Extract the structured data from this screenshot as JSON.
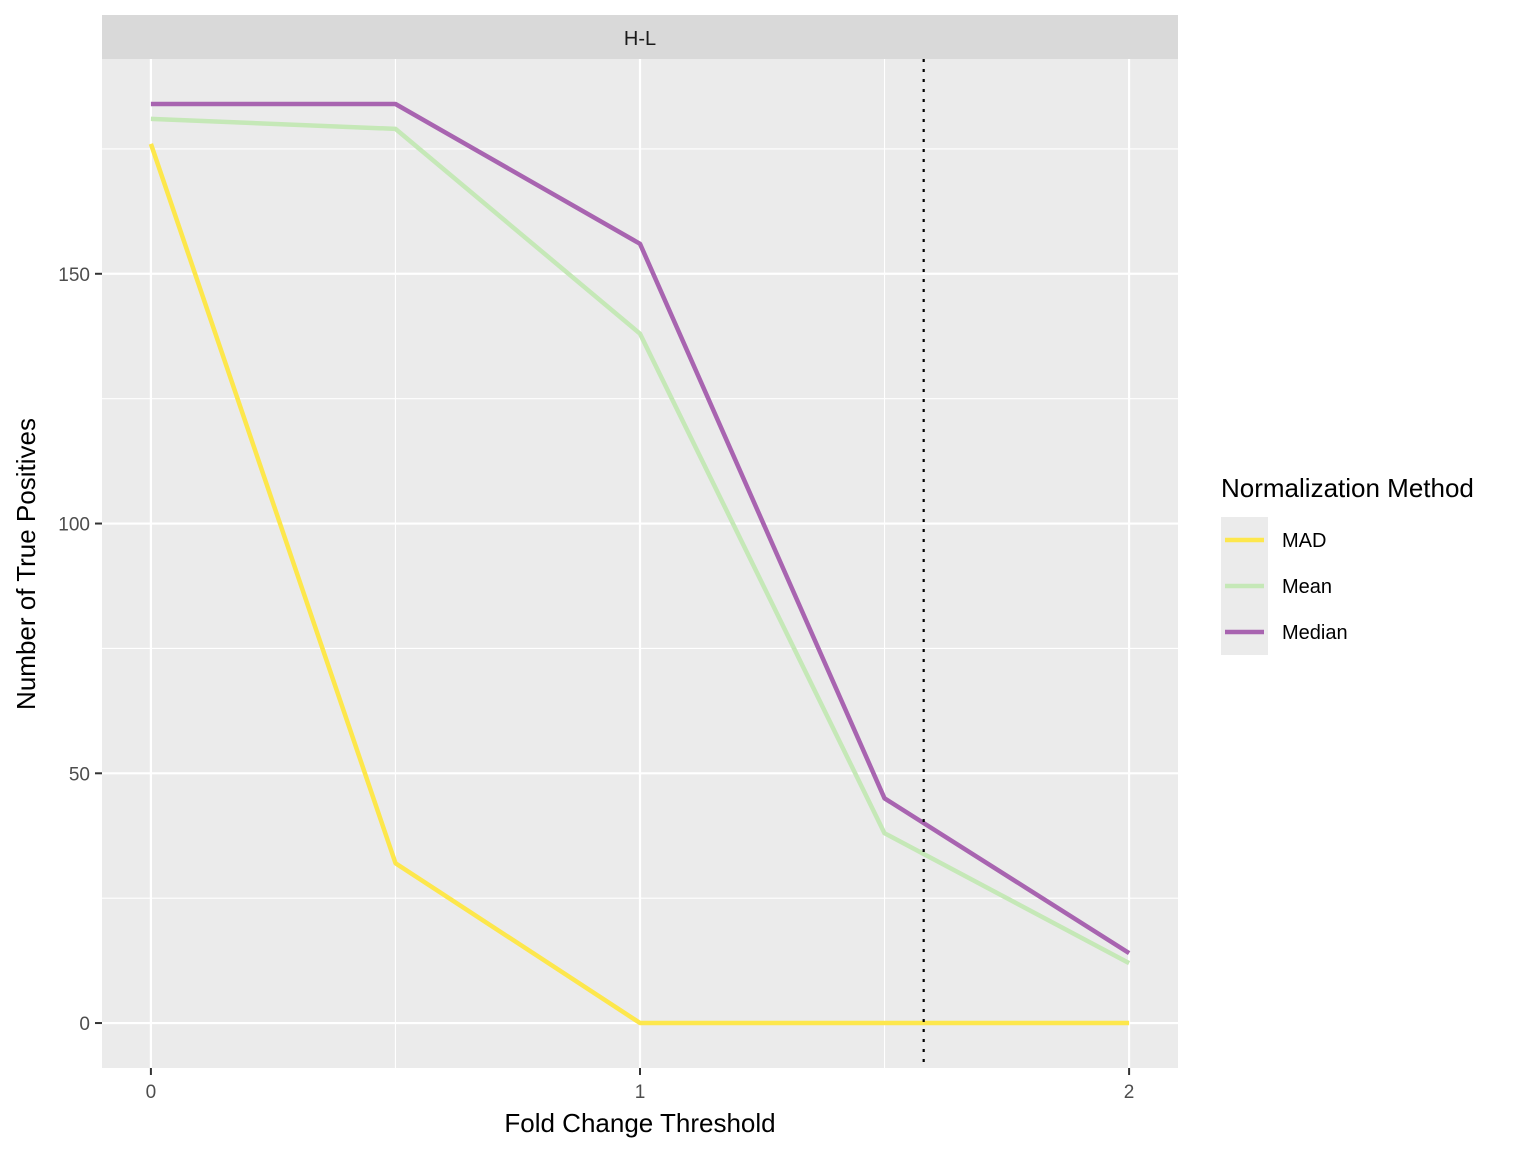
{
  "chart_data": {
    "type": "line",
    "facet_label": "H-L",
    "xlabel": "Fold Change Threshold",
    "ylabel": "Number of True Positives",
    "x": [
      0,
      0.5,
      1,
      1.5,
      2
    ],
    "xlim": [
      -0.1,
      2.1
    ],
    "ylim": [
      -9,
      193
    ],
    "xticks": [
      0,
      1,
      2
    ],
    "yticks": [
      0,
      50,
      100,
      150
    ],
    "vline": 1.58,
    "grid": true,
    "legend_title": "Normalization Method",
    "legend_position": "right",
    "series": [
      {
        "name": "MAD",
        "color": "#FDE74C",
        "values": [
          176,
          32,
          0,
          0,
          0
        ]
      },
      {
        "name": "Mean",
        "color": "#C5E8B7",
        "values": [
          181,
          179,
          138,
          38,
          12
        ]
      },
      {
        "name": "Median",
        "color": "#A864B0",
        "values": [
          184,
          184,
          156,
          45,
          14
        ]
      }
    ]
  }
}
